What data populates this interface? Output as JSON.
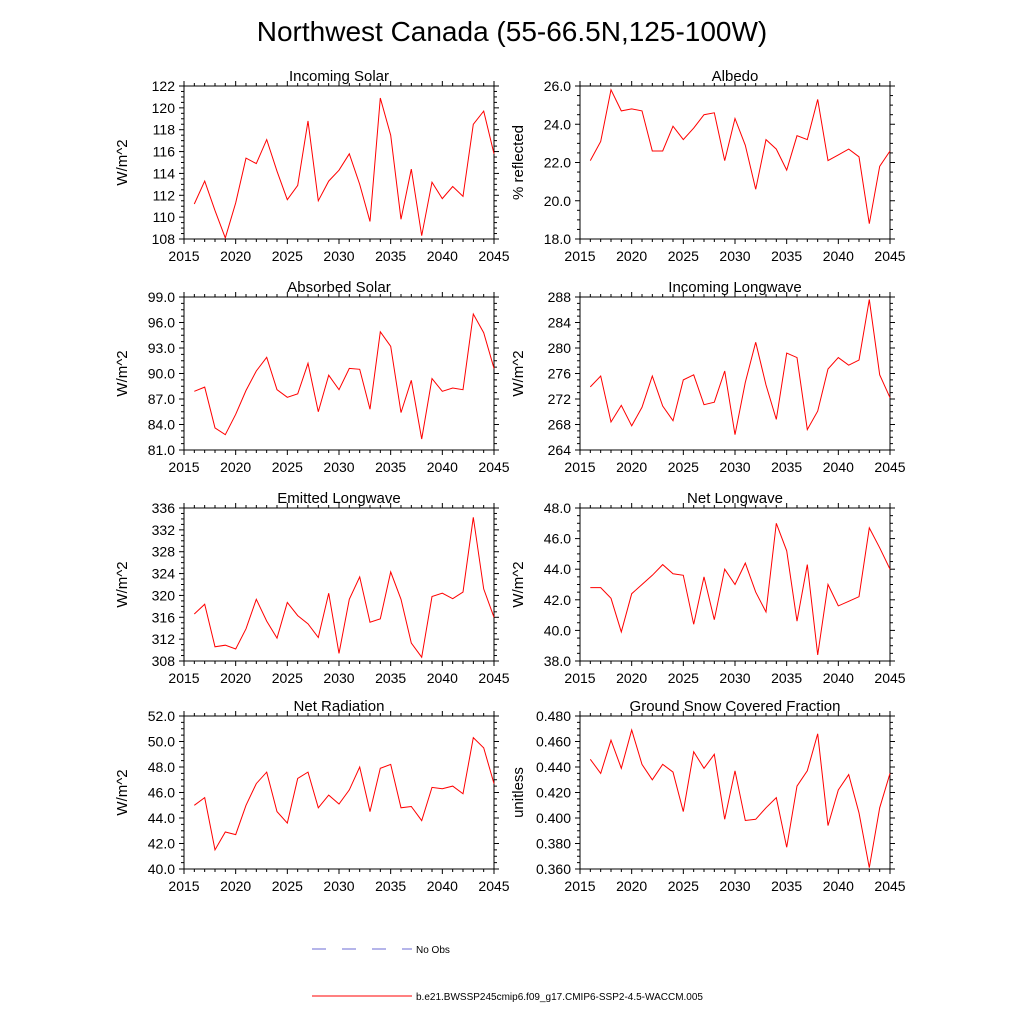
{
  "figure": {
    "title": "Northwest Canada (55-66.5N,125-100W)"
  },
  "legend": {
    "entries": [
      {
        "label": "No Obs",
        "color": "#6b6bd6",
        "style": "dashed"
      },
      {
        "label": "b.e21.BWSSP245cmip6.f09_g17.CMIP6-SSP2-4.5-WACCM.005",
        "color": "#ff0000",
        "style": "solid"
      }
    ]
  },
  "chart_data": [
    {
      "type": "line",
      "title": "Incoming Solar",
      "xlabel": "",
      "ylabel": "W/m^2",
      "xlim": [
        2015,
        2045
      ],
      "ylim": [
        108,
        122
      ],
      "xticks": [
        "2015",
        "2020",
        "2025",
        "2030",
        "2035",
        "2040",
        "2045"
      ],
      "yticks": [
        "108",
        "110",
        "112",
        "114",
        "116",
        "118",
        "120",
        "122"
      ],
      "x": [
        2016,
        2017,
        2018,
        2019,
        2020,
        2021,
        2022,
        2023,
        2024,
        2025,
        2026,
        2027,
        2028,
        2029,
        2030,
        2031,
        2032,
        2033,
        2034,
        2035,
        2036,
        2037,
        2038,
        2039,
        2040,
        2041,
        2042,
        2043,
        2044,
        2045
      ],
      "series": [
        {
          "name": "b.e21.BWSSP245cmip6.f09_g17.CMIP6-SSP2-4.5-WACCM.005",
          "color": "#ff0000",
          "values": [
            111.2,
            113.3,
            110.6,
            108.1,
            111.3,
            115.4,
            114.9,
            117.1,
            114.2,
            111.6,
            112.9,
            118.8,
            111.5,
            113.3,
            114.3,
            115.8,
            113.0,
            109.6,
            120.9,
            117.5,
            109.8,
            114.4,
            108.3,
            113.2,
            111.7,
            112.8,
            111.9,
            118.5,
            119.7,
            115.8
          ]
        }
      ]
    },
    {
      "type": "line",
      "title": "Albedo",
      "xlabel": "",
      "ylabel": "% reflected",
      "xlim": [
        2015,
        2045
      ],
      "ylim": [
        18,
        26
      ],
      "xticks": [
        "2015",
        "2020",
        "2025",
        "2030",
        "2035",
        "2040",
        "2045"
      ],
      "yticks": [
        "18.0",
        "20.0",
        "22.0",
        "24.0",
        "26.0"
      ],
      "x": [
        2016,
        2017,
        2018,
        2019,
        2020,
        2021,
        2022,
        2023,
        2024,
        2025,
        2026,
        2027,
        2028,
        2029,
        2030,
        2031,
        2032,
        2033,
        2034,
        2035,
        2036,
        2037,
        2038,
        2039,
        2040,
        2041,
        2042,
        2043,
        2044,
        2045
      ],
      "series": [
        {
          "name": "b.e21.BWSSP245cmip6.f09_g17.CMIP6-SSP2-4.5-WACCM.005",
          "color": "#ff0000",
          "values": [
            22.1,
            23.1,
            25.8,
            24.7,
            24.8,
            24.7,
            22.6,
            22.6,
            23.9,
            23.2,
            23.8,
            24.5,
            24.6,
            22.1,
            24.3,
            22.9,
            20.6,
            23.2,
            22.7,
            21.6,
            23.4,
            23.2,
            25.3,
            22.1,
            22.4,
            22.7,
            22.3,
            18.8,
            21.8,
            22.6
          ]
        }
      ]
    },
    {
      "type": "line",
      "title": "Absorbed Solar",
      "xlabel": "",
      "ylabel": "W/m^2",
      "xlim": [
        2015,
        2045
      ],
      "ylim": [
        81,
        99
      ],
      "xticks": [
        "2015",
        "2020",
        "2025",
        "2030",
        "2035",
        "2040",
        "2045"
      ],
      "yticks": [
        "81.0",
        "84.0",
        "87.0",
        "90.0",
        "93.0",
        "96.0",
        "99.0"
      ],
      "x": [
        2016,
        2017,
        2018,
        2019,
        2020,
        2021,
        2022,
        2023,
        2024,
        2025,
        2026,
        2027,
        2028,
        2029,
        2030,
        2031,
        2032,
        2033,
        2034,
        2035,
        2036,
        2037,
        2038,
        2039,
        2040,
        2041,
        2042,
        2043,
        2044,
        2045
      ],
      "series": [
        {
          "name": "b.e21.BWSSP245cmip6.f09_g17.CMIP6-SSP2-4.5-WACCM.005",
          "color": "#ff0000",
          "values": [
            87.9,
            88.4,
            83.6,
            82.8,
            85.2,
            88.0,
            90.3,
            91.9,
            88.1,
            87.2,
            87.6,
            91.2,
            85.5,
            89.8,
            88.1,
            90.6,
            90.5,
            85.8,
            94.9,
            93.2,
            85.4,
            89.2,
            82.3,
            89.4,
            87.9,
            88.3,
            88.1,
            97.0,
            94.8,
            90.6
          ]
        }
      ]
    },
    {
      "type": "line",
      "title": "Incoming Longwave",
      "xlabel": "",
      "ylabel": "W/m^2",
      "xlim": [
        2015,
        2045
      ],
      "ylim": [
        264,
        288
      ],
      "xticks": [
        "2015",
        "2020",
        "2025",
        "2030",
        "2035",
        "2040",
        "2045"
      ],
      "yticks": [
        "264",
        "268",
        "272",
        "276",
        "280",
        "284",
        "288"
      ],
      "x": [
        2016,
        2017,
        2018,
        2019,
        2020,
        2021,
        2022,
        2023,
        2024,
        2025,
        2026,
        2027,
        2028,
        2029,
        2030,
        2031,
        2032,
        2033,
        2034,
        2035,
        2036,
        2037,
        2038,
        2039,
        2040,
        2041,
        2042,
        2043,
        2044,
        2045
      ],
      "series": [
        {
          "name": "b.e21.BWSSP245cmip6.f09_g17.CMIP6-SSP2-4.5-WACCM.005",
          "color": "#ff0000",
          "values": [
            273.9,
            275.6,
            268.4,
            271.0,
            267.8,
            270.7,
            275.6,
            270.9,
            268.6,
            275.0,
            275.8,
            271.1,
            271.5,
            276.4,
            266.4,
            274.6,
            280.9,
            274.2,
            268.8,
            279.2,
            278.5,
            267.2,
            270.1,
            276.7,
            278.5,
            277.3,
            278.1,
            287.6,
            275.8,
            272.2
          ]
        }
      ]
    },
    {
      "type": "line",
      "title": "Emitted Longwave",
      "xlabel": "",
      "ylabel": "W/m^2",
      "xlim": [
        2015,
        2045
      ],
      "ylim": [
        308,
        336
      ],
      "xticks": [
        "2015",
        "2020",
        "2025",
        "2030",
        "2035",
        "2040",
        "2045"
      ],
      "yticks": [
        "308",
        "312",
        "316",
        "320",
        "324",
        "328",
        "332",
        "336"
      ],
      "x": [
        2016,
        2017,
        2018,
        2019,
        2020,
        2021,
        2022,
        2023,
        2024,
        2025,
        2026,
        2027,
        2028,
        2029,
        2030,
        2031,
        2032,
        2033,
        2034,
        2035,
        2036,
        2037,
        2038,
        2039,
        2040,
        2041,
        2042,
        2043,
        2044,
        2045
      ],
      "series": [
        {
          "name": "b.e21.BWSSP245cmip6.f09_g17.CMIP6-SSP2-4.5-WACCM.005",
          "color": "#ff0000",
          "values": [
            316.6,
            318.4,
            310.6,
            310.9,
            310.2,
            313.9,
            319.3,
            315.3,
            312.2,
            318.7,
            316.3,
            314.8,
            312.3,
            320.4,
            309.4,
            319.3,
            323.4,
            315.1,
            315.7,
            324.3,
            319.3,
            311.3,
            308.7,
            319.8,
            320.4,
            319.4,
            320.6,
            334.3,
            321.2,
            316.0
          ]
        }
      ]
    },
    {
      "type": "line",
      "title": "Net Longwave",
      "xlabel": "",
      "ylabel": "W/m^2",
      "xlim": [
        2015,
        2045
      ],
      "ylim": [
        38,
        48
      ],
      "xticks": [
        "2015",
        "2020",
        "2025",
        "2030",
        "2035",
        "2040",
        "2045"
      ],
      "yticks": [
        "38.0",
        "40.0",
        "42.0",
        "44.0",
        "46.0",
        "48.0"
      ],
      "x": [
        2016,
        2017,
        2018,
        2019,
        2020,
        2021,
        2022,
        2023,
        2024,
        2025,
        2026,
        2027,
        2028,
        2029,
        2030,
        2031,
        2032,
        2033,
        2034,
        2035,
        2036,
        2037,
        2038,
        2039,
        2040,
        2041,
        2042,
        2043,
        2044,
        2045
      ],
      "series": [
        {
          "name": "b.e21.BWSSP245cmip6.f09_g17.CMIP6-SSP2-4.5-WACCM.005",
          "color": "#ff0000",
          "values": [
            42.8,
            42.8,
            42.1,
            39.9,
            42.4,
            43.0,
            43.6,
            44.3,
            43.7,
            43.6,
            40.4,
            43.5,
            40.7,
            44.0,
            43.0,
            44.4,
            42.5,
            41.2,
            47.0,
            45.2,
            40.6,
            44.3,
            38.4,
            43.0,
            41.6,
            41.9,
            42.2,
            46.7,
            45.4,
            44.0
          ]
        }
      ]
    },
    {
      "type": "line",
      "title": "Net Radiation",
      "xlabel": "",
      "ylabel": "W/m^2",
      "xlim": [
        2015,
        2045
      ],
      "ylim": [
        40,
        52
      ],
      "xticks": [
        "2015",
        "2020",
        "2025",
        "2030",
        "2035",
        "2040",
        "2045"
      ],
      "yticks": [
        "40.0",
        "42.0",
        "44.0",
        "46.0",
        "48.0",
        "50.0",
        "52.0"
      ],
      "x": [
        2016,
        2017,
        2018,
        2019,
        2020,
        2021,
        2022,
        2023,
        2024,
        2025,
        2026,
        2027,
        2028,
        2029,
        2030,
        2031,
        2032,
        2033,
        2034,
        2035,
        2036,
        2037,
        2038,
        2039,
        2040,
        2041,
        2042,
        2043,
        2044,
        2045
      ],
      "series": [
        {
          "name": "b.e21.BWSSP245cmip6.f09_g17.CMIP6-SSP2-4.5-WACCM.005",
          "color": "#ff0000",
          "values": [
            45.0,
            45.6,
            41.5,
            42.9,
            42.7,
            45.0,
            46.7,
            47.6,
            44.5,
            43.6,
            47.1,
            47.6,
            44.8,
            45.8,
            45.1,
            46.2,
            48.0,
            44.5,
            47.9,
            48.2,
            44.8,
            44.9,
            43.8,
            46.4,
            46.3,
            46.5,
            45.9,
            50.3,
            49.5,
            46.7
          ]
        }
      ]
    },
    {
      "type": "line",
      "title": "Ground Snow Covered Fraction",
      "xlabel": "",
      "ylabel": "unitless",
      "xlim": [
        2015,
        2045
      ],
      "ylim": [
        0.36,
        0.48
      ],
      "xticks": [
        "2015",
        "2020",
        "2025",
        "2030",
        "2035",
        "2040",
        "2045"
      ],
      "yticks": [
        "0.360",
        "0.380",
        "0.400",
        "0.420",
        "0.440",
        "0.460",
        "0.480"
      ],
      "x": [
        2016,
        2017,
        2018,
        2019,
        2020,
        2021,
        2022,
        2023,
        2024,
        2025,
        2026,
        2027,
        2028,
        2029,
        2030,
        2031,
        2032,
        2033,
        2034,
        2035,
        2036,
        2037,
        2038,
        2039,
        2040,
        2041,
        2042,
        2043,
        2044,
        2045
      ],
      "series": [
        {
          "name": "b.e21.BWSSP245cmip6.f09_g17.CMIP6-SSP2-4.5-WACCM.005",
          "color": "#ff0000",
          "values": [
            0.446,
            0.435,
            0.461,
            0.439,
            0.469,
            0.442,
            0.43,
            0.442,
            0.436,
            0.405,
            0.452,
            0.439,
            0.45,
            0.399,
            0.437,
            0.398,
            0.399,
            0.408,
            0.416,
            0.377,
            0.425,
            0.437,
            0.466,
            0.394,
            0.422,
            0.434,
            0.404,
            0.361,
            0.408,
            0.435
          ]
        }
      ]
    }
  ]
}
